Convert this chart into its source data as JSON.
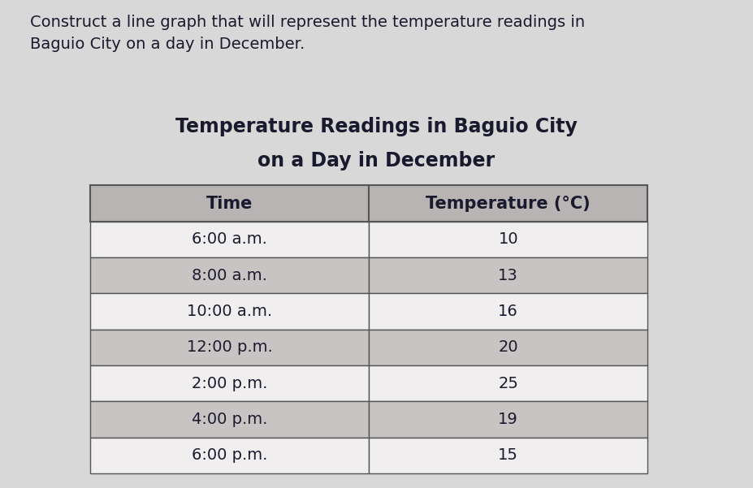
{
  "instruction_text": "Construct a line graph that will represent the temperature readings in\nBaguio City on a day in December.",
  "title_line1": "Temperature Readings in Baguio City",
  "title_line2": "on a Day in December",
  "col_headers": [
    "Time",
    "Temperature (°C)"
  ],
  "times": [
    "6:00 a.m.",
    "8:00 a.m.",
    "10:00 a.m.",
    "12:00 p.m.",
    "2:00 p.m.",
    "4:00 p.m.",
    "6:00 p.m."
  ],
  "temperatures": [
    "10",
    "13",
    "16",
    "20",
    "25",
    "19",
    "15"
  ],
  "background_color": "#d8d8d8",
  "table_bg_light": "#f0eeee",
  "table_bg_dark": "#c8c4c4",
  "header_bg": "#b8b4b4",
  "table_border_color": "#555555",
  "text_color": "#1a1a2e",
  "instruction_fontsize": 14,
  "title_fontsize": 17,
  "header_fontsize": 15,
  "cell_fontsize": 14
}
